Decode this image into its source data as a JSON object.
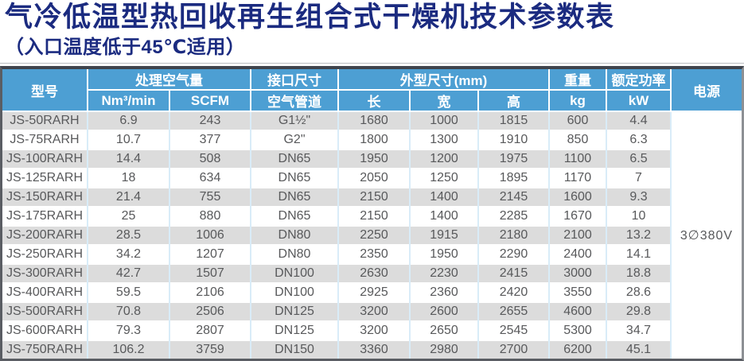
{
  "page": {
    "title": "气冷低温型热回收再生组合式干燥机技术参数表",
    "subtitle": "（入口温度低于45℃适用）"
  },
  "colors": {
    "title_navy": "#1b2b80",
    "header_blue": "#4d9fd3",
    "stripe_gray": "#dcdcdc",
    "cell_text": "#58595b",
    "grid_blue": "#d9ecf8"
  },
  "table": {
    "header": {
      "model": "型号",
      "air_volume": "处理空气量",
      "air_volume_sub": [
        "Nm³/min",
        "SCFM"
      ],
      "interface": "接口尺寸",
      "interface_sub": "空气管道",
      "dimensions": "外型尺寸(mm)",
      "dimensions_sub": [
        "长",
        "宽",
        "高"
      ],
      "weight": "重量",
      "weight_sub": "kg",
      "rated_power": "额定功率",
      "rated_power_sub": "kW",
      "power_supply": "电源"
    },
    "power_supply_value": "3∅380V",
    "rows": [
      [
        "JS-50RARH",
        "6.9",
        "243",
        "G1½\"",
        "1680",
        "1000",
        "1815",
        "600",
        "4.4"
      ],
      [
        "JS-75RARH",
        "10.7",
        "377",
        "G2\"",
        "1800",
        "1300",
        "1910",
        "850",
        "6.3"
      ],
      [
        "JS-100RARH",
        "14.4",
        "508",
        "DN65",
        "1950",
        "1200",
        "1975",
        "1100",
        "6.5"
      ],
      [
        "JS-125RARH",
        "18",
        "634",
        "DN65",
        "2050",
        "1250",
        "1895",
        "1170",
        "7"
      ],
      [
        "JS-150RARH",
        "21.4",
        "755",
        "DN65",
        "2150",
        "1400",
        "2145",
        "1600",
        "9.3"
      ],
      [
        "JS-175RARH",
        "25",
        "880",
        "DN65",
        "2150",
        "1400",
        "2285",
        "1670",
        "10"
      ],
      [
        "JS-200RARH",
        "28.5",
        "1006",
        "DN80",
        "2250",
        "1915",
        "2180",
        "2100",
        "13.2"
      ],
      [
        "JS-250RARH",
        "34.2",
        "1207",
        "DN80",
        "2350",
        "1950",
        "2290",
        "2400",
        "14.1"
      ],
      [
        "JS-300RARH",
        "42.7",
        "1507",
        "DN100",
        "2630",
        "2230",
        "2415",
        "3000",
        "18.8"
      ],
      [
        "JS-400RARH",
        "59.5",
        "2106",
        "DN100",
        "2925",
        "2360",
        "2420",
        "3550",
        "28.6"
      ],
      [
        "JS-500RARH",
        "70.8",
        "2506",
        "DN125",
        "3200",
        "2600",
        "2655",
        "4600",
        "29.8"
      ],
      [
        "JS-600RARH",
        "79.3",
        "2807",
        "DN125",
        "3200",
        "2650",
        "2545",
        "5300",
        "34.7"
      ],
      [
        "JS-750RARH",
        "106.2",
        "3759",
        "DN150",
        "3360",
        "2980",
        "2700",
        "6200",
        "45.1"
      ]
    ]
  }
}
